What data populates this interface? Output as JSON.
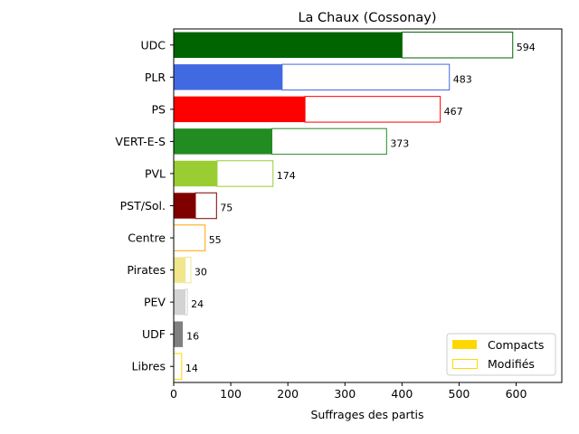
{
  "chart_data": {
    "type": "bar",
    "orientation": "horizontal",
    "title": "La Chaux (Cossonay)",
    "xlabel": "Suffrages des partis",
    "ylabel": "",
    "xlim": [
      0,
      680
    ],
    "xticks": [
      0,
      100,
      200,
      300,
      400,
      500,
      600
    ],
    "categories": [
      "UDC",
      "PLR",
      "PS",
      "VERT-E-S",
      "PVL",
      "PST/Sol.",
      "Centre",
      "Pirates",
      "PEV",
      "UDF",
      "Libres"
    ],
    "colors": [
      "#006400",
      "#4169e1",
      "#ff0000",
      "#228b22",
      "#9acd32",
      "#800000",
      "#ffa500",
      "#f0e68c",
      "#d3d3d3",
      "#808080",
      "#ffd700"
    ],
    "series": [
      {
        "name": "Compacts",
        "values": [
          400,
          190,
          230,
          172,
          76,
          38,
          0,
          20,
          20,
          16,
          0
        ]
      },
      {
        "name": "Modifiés",
        "values": [
          194,
          293,
          237,
          201,
          98,
          37,
          55,
          10,
          4,
          0,
          14
        ]
      }
    ],
    "totals": [
      "594",
      "483",
      "467",
      "373",
      "174",
      "75",
      "55",
      "30",
      "24",
      "16",
      "14"
    ],
    "legend": {
      "position": "lower right",
      "items": [
        "Compacts",
        "Modifiés"
      ],
      "swatch_color": "#ffd700"
    },
    "grid": false
  }
}
